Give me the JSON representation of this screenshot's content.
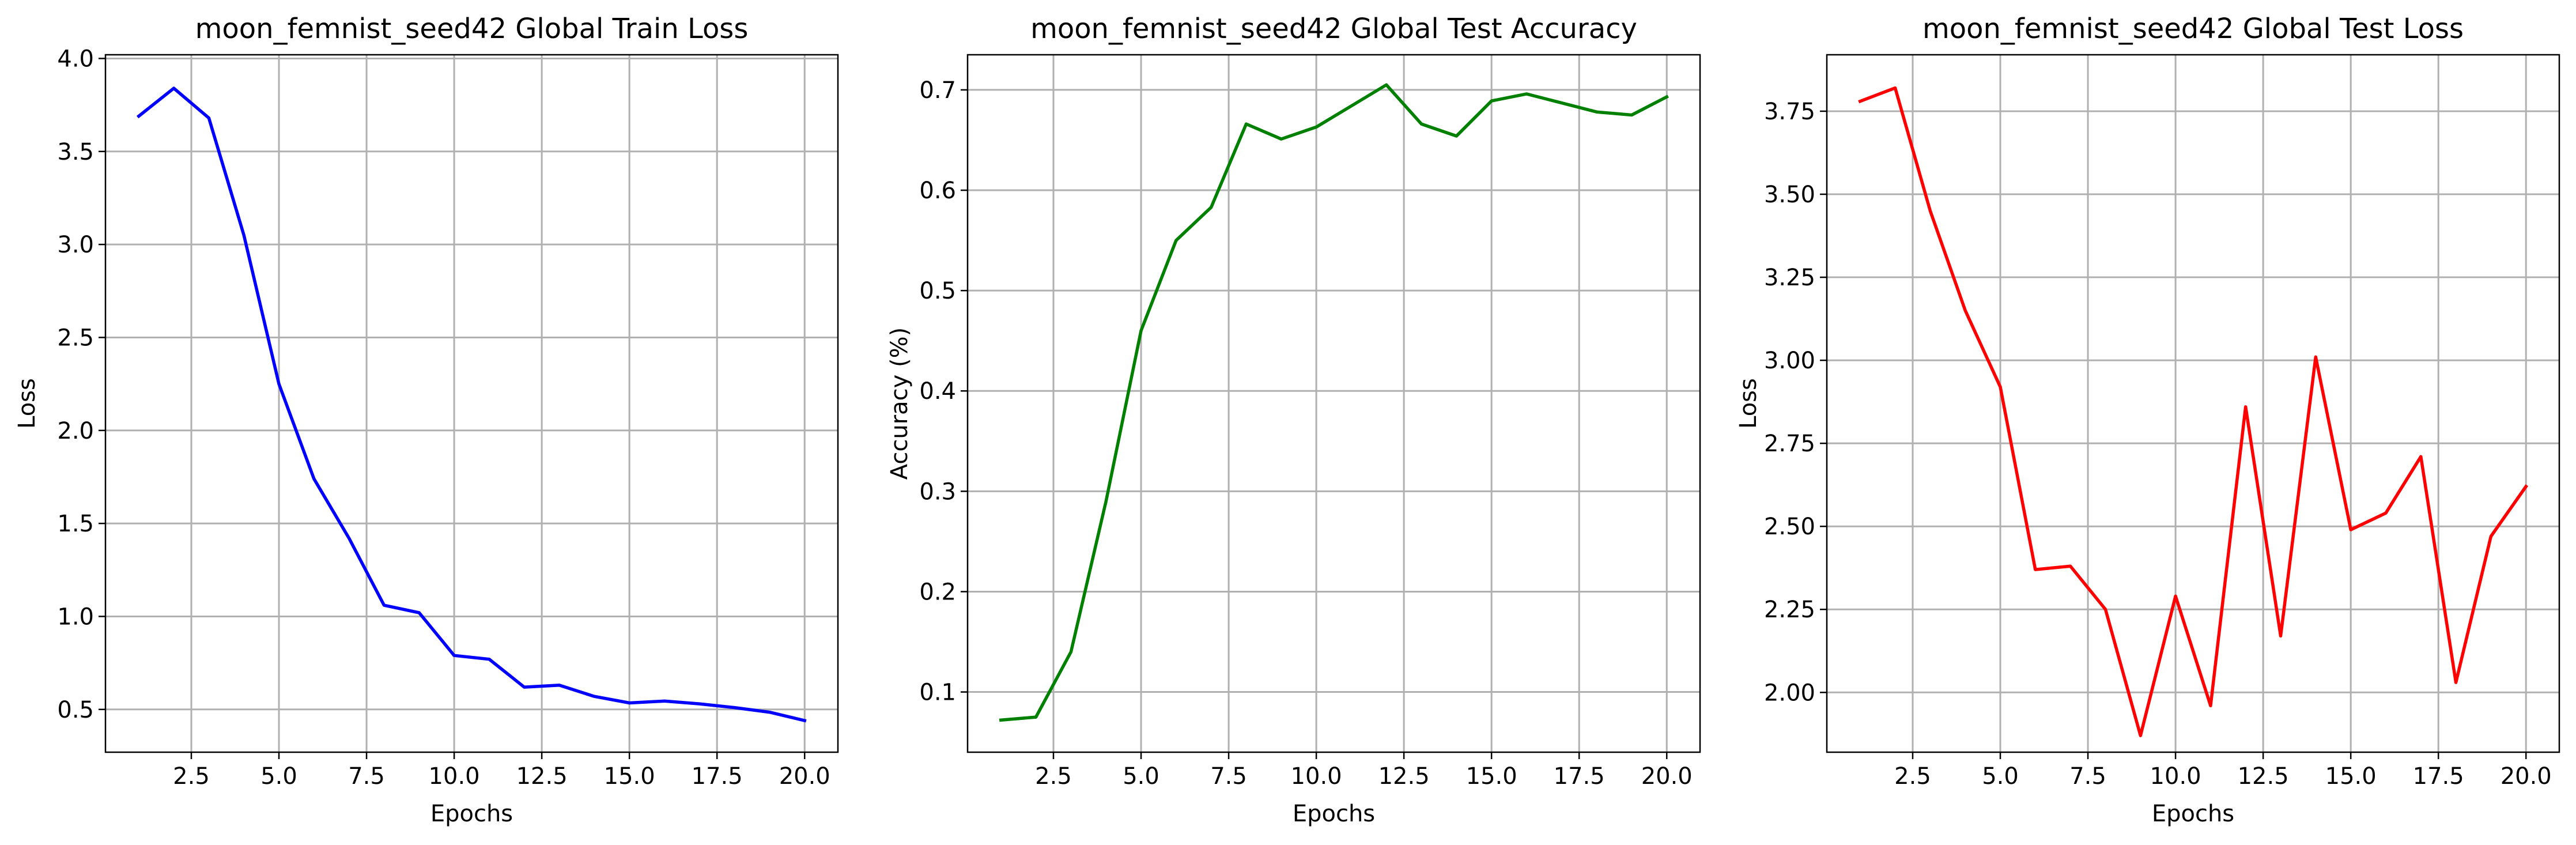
{
  "chart_data": [
    {
      "type": "line",
      "title": "moon_femnist_seed42 Global Train Loss",
      "xlabel": "Epochs",
      "ylabel": "Loss",
      "xlim": [
        0.05,
        20.95
      ],
      "ylim": [
        0.27,
        4.02
      ],
      "xticks": [
        2.5,
        5.0,
        7.5,
        10.0,
        12.5,
        15.0,
        17.5,
        20.0
      ],
      "xtick_labels": [
        "2.5",
        "5.0",
        "7.5",
        "10.0",
        "12.5",
        "15.0",
        "17.5",
        "20.0"
      ],
      "yticks": [
        0.5,
        1.0,
        1.5,
        2.0,
        2.5,
        3.0,
        3.5,
        4.0
      ],
      "ytick_labels": [
        "0.5",
        "1.0",
        "1.5",
        "2.0",
        "2.5",
        "3.0",
        "3.5",
        "4.0"
      ],
      "grid": true,
      "series": [
        {
          "color": "#0000ff",
          "x": [
            1,
            2,
            3,
            4,
            5,
            6,
            7,
            8,
            9,
            10,
            11,
            12,
            13,
            14,
            15,
            16,
            17,
            18,
            19,
            20
          ],
          "values": [
            3.69,
            3.84,
            3.68,
            3.05,
            2.25,
            1.74,
            1.42,
            1.06,
            1.02,
            0.79,
            0.77,
            0.62,
            0.63,
            0.57,
            0.535,
            0.545,
            0.53,
            0.51,
            0.485,
            0.44
          ]
        }
      ]
    },
    {
      "type": "line",
      "title": "moon_femnist_seed42 Global Test Accuracy",
      "xlabel": "Epochs",
      "ylabel": "Accuracy (%)",
      "xlim": [
        0.05,
        20.95
      ],
      "ylim": [
        0.04,
        0.735
      ],
      "xticks": [
        2.5,
        5.0,
        7.5,
        10.0,
        12.5,
        15.0,
        17.5,
        20.0
      ],
      "xtick_labels": [
        "2.5",
        "5.0",
        "7.5",
        "10.0",
        "12.5",
        "15.0",
        "17.5",
        "20.0"
      ],
      "yticks": [
        0.1,
        0.2,
        0.3,
        0.4,
        0.5,
        0.6,
        0.7
      ],
      "ytick_labels": [
        "0.1",
        "0.2",
        "0.3",
        "0.4",
        "0.5",
        "0.6",
        "0.7"
      ],
      "grid": true,
      "series": [
        {
          "color": "#008000",
          "x": [
            1,
            2,
            3,
            4,
            5,
            6,
            7,
            8,
            9,
            10,
            11,
            12,
            13,
            14,
            15,
            16,
            17,
            18,
            19,
            20
          ],
          "values": [
            0.072,
            0.075,
            0.14,
            0.29,
            0.46,
            0.55,
            0.583,
            0.666,
            0.651,
            0.663,
            0.684,
            0.705,
            0.666,
            0.654,
            0.689,
            0.696,
            0.687,
            0.678,
            0.675,
            0.693
          ]
        }
      ]
    },
    {
      "type": "line",
      "title": "moon_femnist_seed42 Global Test Loss",
      "xlabel": "Epochs",
      "ylabel": "Loss",
      "xlim": [
        0.05,
        20.95
      ],
      "ylim": [
        1.82,
        3.92
      ],
      "xticks": [
        2.5,
        5.0,
        7.5,
        10.0,
        12.5,
        15.0,
        17.5,
        20.0
      ],
      "xtick_labels": [
        "2.5",
        "5.0",
        "7.5",
        "10.0",
        "12.5",
        "15.0",
        "17.5",
        "20.0"
      ],
      "yticks": [
        2.0,
        2.25,
        2.5,
        2.75,
        3.0,
        3.25,
        3.5,
        3.75
      ],
      "ytick_labels": [
        "2.00",
        "2.25",
        "2.50",
        "2.75",
        "3.00",
        "3.25",
        "3.50",
        "3.75"
      ],
      "grid": true,
      "series": [
        {
          "color": "#ff0000",
          "x": [
            1,
            2,
            3,
            4,
            5,
            6,
            7,
            8,
            9,
            10,
            11,
            12,
            13,
            14,
            15,
            16,
            17,
            18,
            19,
            20
          ],
          "values": [
            3.78,
            3.82,
            3.45,
            3.15,
            2.92,
            2.37,
            2.38,
            2.25,
            1.87,
            2.29,
            1.96,
            2.86,
            2.17,
            3.01,
            2.49,
            2.54,
            2.71,
            2.03,
            2.47,
            2.62
          ]
        }
      ]
    }
  ]
}
